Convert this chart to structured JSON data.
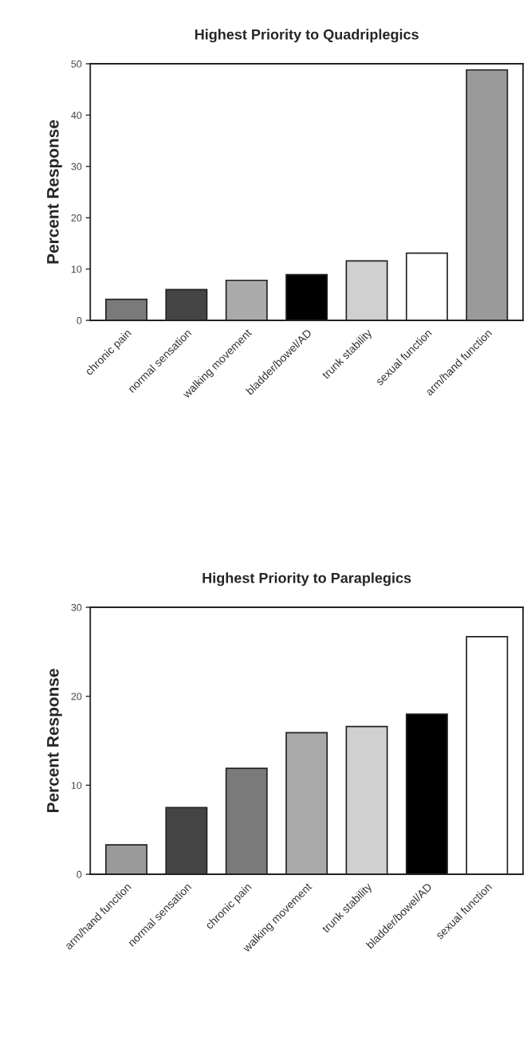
{
  "chart_data": [
    {
      "type": "bar",
      "title": "Highest Priority to Quadriplegics",
      "ylabel": "Percent Response",
      "categories": [
        "chronic pain",
        "normal sensation",
        "walking movement",
        "bladder/bowel/AD",
        "trunk stability",
        "sexual function",
        "arm/hand function"
      ],
      "values": [
        4.1,
        6.0,
        7.8,
        8.9,
        11.6,
        13.1,
        48.8
      ],
      "colors": [
        "#7a7a7a",
        "#444444",
        "#aaaaaa",
        "#000000",
        "#d0d0d0",
        "#ffffff",
        "#9a9a9a"
      ],
      "ylim": [
        0,
        50
      ],
      "yticks": [
        0,
        10,
        20,
        30,
        40,
        50
      ],
      "grid": false
    },
    {
      "type": "bar",
      "title": "Highest Priority to Paraplegics",
      "ylabel": "Percent Response",
      "categories": [
        "arm/hand function",
        "normal sensation",
        "chronic pain",
        "walking movement",
        "trunk stability",
        "bladder/bowel/AD",
        "sexual function"
      ],
      "values": [
        3.3,
        7.5,
        11.9,
        15.9,
        16.6,
        18.0,
        26.7
      ],
      "colors": [
        "#9a9a9a",
        "#444444",
        "#7a7a7a",
        "#aaaaaa",
        "#d0d0d0",
        "#000000",
        "#ffffff"
      ],
      "ylim": [
        0,
        30
      ],
      "yticks": [
        0,
        10,
        20,
        30
      ],
      "grid": false
    }
  ]
}
